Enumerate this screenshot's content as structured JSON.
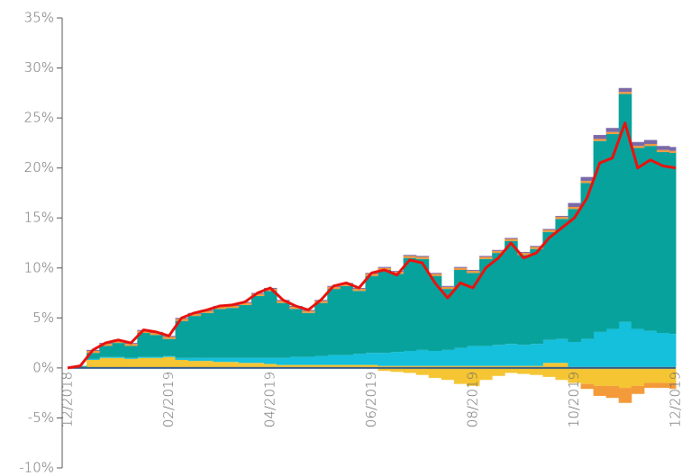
{
  "chart_data": {
    "type": "area",
    "categories": [
      "12/2018",
      null,
      null,
      null,
      null,
      null,
      null,
      null,
      "02/2019",
      null,
      null,
      null,
      null,
      null,
      null,
      null,
      "04/2019",
      null,
      null,
      null,
      null,
      null,
      null,
      null,
      "06/2019",
      null,
      null,
      null,
      null,
      null,
      null,
      null,
      "08/2019",
      null,
      null,
      null,
      null,
      null,
      null,
      null,
      "10/2019",
      null,
      null,
      null,
      null,
      null,
      null,
      null,
      "12/2019"
    ],
    "ylim": [
      -10,
      35
    ],
    "yticks": [
      {
        "value": -10,
        "label": "-10%"
      },
      {
        "value": -5,
        "label": "-5%"
      },
      {
        "value": 0,
        "label": "0%"
      },
      {
        "value": 5,
        "label": "5%"
      },
      {
        "value": 10,
        "label": "10%"
      },
      {
        "value": 15,
        "label": "15%"
      },
      {
        "value": 20,
        "label": "20%"
      },
      {
        "value": 25,
        "label": "25%"
      },
      {
        "value": 30,
        "label": "30%"
      },
      {
        "value": 35,
        "label": "35%"
      }
    ],
    "series": [
      {
        "color": "#f5c533",
        "values": [
          0,
          0.1,
          0.8,
          1,
          1,
          0.9,
          1,
          1,
          1.1,
          0.8,
          0.7,
          0.7,
          0.6,
          0.6,
          0.5,
          0.5,
          0.4,
          0.3,
          0.3,
          0.3,
          0.3,
          0.3,
          0.3,
          0.3,
          0.3,
          0.2,
          0.2,
          0.2,
          0.2,
          0.2,
          0.2,
          0.2,
          0.2,
          0.2,
          0.2,
          0.2,
          0.2,
          0.2,
          0.5,
          0.5,
          0.1,
          0.1,
          0.1,
          0.1,
          0.1,
          0.1,
          0.1,
          0.1,
          0.1
        ]
      },
      {
        "color": "#14c0dc",
        "values": [
          0,
          0,
          0.1,
          0.1,
          0.1,
          0.1,
          0.1,
          0.1,
          0.1,
          0.2,
          0.3,
          0.3,
          0.4,
          0.4,
          0.5,
          0.5,
          0.6,
          0.7,
          0.8,
          0.8,
          0.9,
          1.0,
          1.0,
          1.1,
          1.2,
          1.3,
          1.4,
          1.5,
          1.6,
          1.5,
          1.6,
          1.8,
          2.0,
          2.0,
          2.1,
          2.2,
          2.1,
          2.2,
          2.3,
          2.4,
          2.5,
          2.8,
          3.5,
          3.8,
          4.5,
          3.8,
          3.6,
          3.4,
          3.3
        ]
      },
      {
        "color": "#08a29c",
        "values": [
          0,
          0.1,
          0.6,
          1.1,
          1.4,
          1.2,
          2.4,
          2.2,
          1.7,
          3.7,
          4.2,
          4.5,
          4.9,
          5.0,
          5.3,
          6.2,
          6.7,
          5.5,
          4.8,
          4.4,
          5.3,
          6.6,
          6.9,
          6.3,
          7.7,
          8.3,
          7.8,
          9.3,
          9.1,
          7.5,
          6.1,
          7.8,
          7.3,
          8.7,
          9.2,
          10.3,
          9.0,
          9.5,
          10.8,
          12.0,
          13.3,
          15.6,
          19.1,
          19.5,
          22.8,
          18.1,
          18.5,
          18.1,
          18.1
        ]
      },
      {
        "color": "#f39a3a",
        "values": [
          0,
          0,
          0.2,
          0.2,
          0.2,
          0.2,
          0.2,
          0.2,
          0.2,
          0.2,
          0.2,
          0.2,
          0.2,
          0.2,
          0.2,
          0.2,
          0.2,
          0.2,
          0.2,
          0.2,
          0.2,
          0.2,
          0.2,
          0.2,
          0.2,
          0.2,
          0.2,
          0.2,
          0.2,
          0.2,
          0.2,
          0.2,
          0.2,
          0.2,
          0.2,
          0.2,
          0.2,
          0.2,
          0.2,
          0.2,
          0.2,
          0.2,
          0.2,
          0.2,
          0.2,
          0.2,
          0.2,
          0.2,
          0.2
        ]
      },
      {
        "color": "#7b6aa8",
        "values": [
          0,
          0,
          0.1,
          0.1,
          0.1,
          0.1,
          0.1,
          0.1,
          0.1,
          0.1,
          0.1,
          0.1,
          0.1,
          0.1,
          0.1,
          0.1,
          0.1,
          0.1,
          0.1,
          0.1,
          0.1,
          0.1,
          0.1,
          0.1,
          0.1,
          0.1,
          0.1,
          0.1,
          0.1,
          0.1,
          0.1,
          0.1,
          0.1,
          0.1,
          0.1,
          0.1,
          0.1,
          0.1,
          0.1,
          0.1,
          0.4,
          0.4,
          0.4,
          0.4,
          0.4,
          0.4,
          0.4,
          0.4,
          0.4
        ]
      },
      {
        "color": "#f5c533",
        "values": [
          0,
          0,
          0,
          0,
          0,
          0,
          0,
          0,
          0,
          0,
          0,
          0,
          0,
          0,
          0,
          0,
          0,
          0,
          0,
          0,
          0,
          0,
          0,
          0,
          0,
          -0.3,
          -0.4,
          -0.5,
          -0.7,
          -1.0,
          -1.2,
          -1.6,
          -1.8,
          -1.2,
          -0.8,
          -0.5,
          -0.6,
          -0.7,
          -0.9,
          -1.2,
          -1.5,
          -1.6,
          -1.8,
          -1.8,
          -2.0,
          -1.8,
          -1.5,
          -1.5,
          -1.5
        ]
      },
      {
        "color": "#f39a3a",
        "values": [
          0,
          0,
          0,
          0,
          0,
          0,
          0,
          0,
          0,
          0,
          0,
          0,
          0,
          0,
          0,
          0,
          0,
          0,
          0,
          0,
          0,
          0,
          0,
          0,
          0,
          0,
          0,
          0,
          0,
          0,
          0,
          0,
          0,
          0,
          0,
          0,
          0,
          0,
          0,
          0,
          0,
          -0.5,
          -1.0,
          -1.2,
          -1.5,
          -0.8,
          -0.5,
          -0.5,
          -0.6
        ]
      },
      {
        "type": "line",
        "color": "#e8130f",
        "values": [
          0,
          0.2,
          1.8,
          2.5,
          2.8,
          2.5,
          3.8,
          3.6,
          3.2,
          5.0,
          5.5,
          5.8,
          6.2,
          6.3,
          6.6,
          7.5,
          8.0,
          6.8,
          6.2,
          5.8,
          6.8,
          8.2,
          8.5,
          8.0,
          9.5,
          9.8,
          9.3,
          10.8,
          10.5,
          8.5,
          7.0,
          8.5,
          8.0,
          10.0,
          11.0,
          12.5,
          11.0,
          11.5,
          13.0,
          14.0,
          15.0,
          17.0,
          20.5,
          21.0,
          24.5,
          20.0,
          20.8,
          20.2,
          20.0
        ]
      }
    ]
  }
}
